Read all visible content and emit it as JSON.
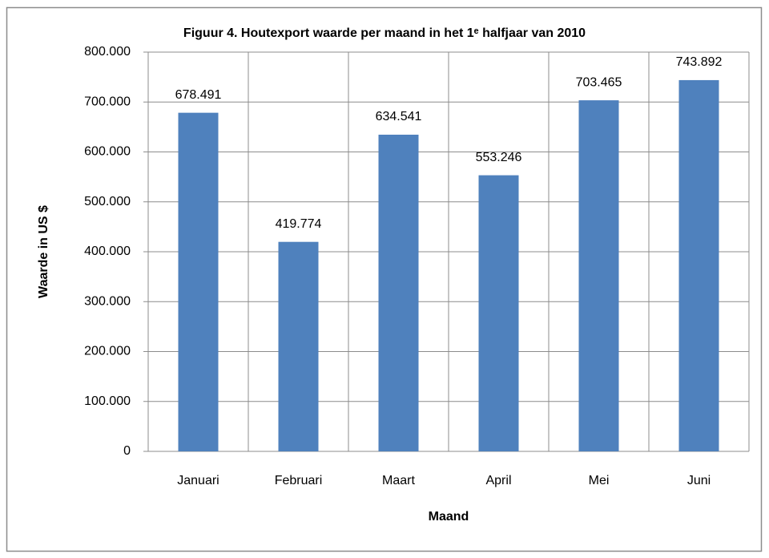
{
  "chart_data": {
    "type": "bar",
    "title": "Figuur 4. Houtexport waarde per maand in het 1ᵉ halfjaar van 2010",
    "x_label": "Maand",
    "y_label": "Waarde in US $",
    "categories": [
      "Januari",
      "Februari",
      "Maart",
      "April",
      "Mei",
      "Juni"
    ],
    "values": [
      678491,
      419774,
      634541,
      553246,
      703465,
      743892
    ],
    "value_labels": [
      "678.491",
      "419.774",
      "634.541",
      "553.246",
      "703.465",
      "743.892"
    ],
    "color": "#4f81bd",
    "ylim": [
      0,
      800000
    ],
    "yticks": [
      0,
      {
        "value": 100000,
        "label": "100.000"
      },
      {
        "value": 200000,
        "label": "200.000"
      },
      {
        "value": 300000,
        "label": "300.000"
      },
      {
        "value": 400000,
        "label": "400.000"
      },
      {
        "value": 500000,
        "label": "500.000"
      },
      {
        "value": 600000,
        "label": "600.000"
      },
      {
        "value": 700000,
        "label": "700.000"
      },
      {
        "value": 800000,
        "label": "800.000"
      }
    ],
    "grid": true
  }
}
